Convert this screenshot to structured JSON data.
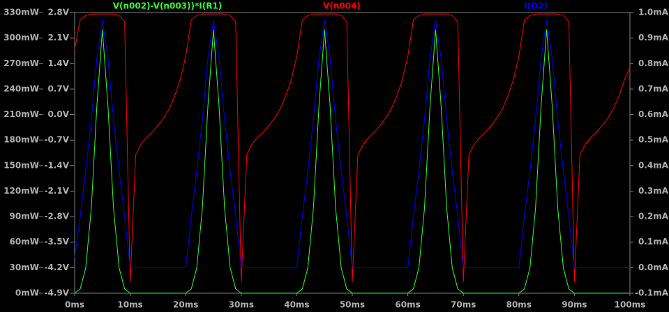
{
  "chart_data": {
    "type": "line",
    "x": [
      0,
      1,
      2,
      3,
      4,
      5,
      6,
      7,
      8,
      9,
      10,
      11,
      12,
      13,
      14,
      15,
      16,
      17,
      18,
      19,
      20,
      21,
      22,
      23,
      24,
      25,
      26,
      27,
      28,
      29,
      30,
      31,
      32,
      33,
      34,
      35,
      36,
      37,
      38,
      39,
      40,
      41,
      42,
      43,
      44,
      45,
      46,
      47,
      48,
      49,
      50,
      51,
      52,
      53,
      54,
      55,
      56,
      57,
      58,
      59,
      60,
      61,
      62,
      63,
      64,
      65,
      66,
      67,
      68,
      69,
      70,
      71,
      72,
      73,
      74,
      75,
      76,
      77,
      78,
      79,
      80,
      81,
      82,
      83,
      84,
      85,
      86,
      87,
      88,
      89,
      90,
      91,
      92,
      93,
      94,
      95,
      96,
      97,
      98,
      99,
      100
    ],
    "series": [
      {
        "name": "V(n002)-V(n003))*I(R1)",
        "color": "#30ff30",
        "axis": "y",
        "values": [
          0,
          5,
          30,
          100,
          220,
          310,
          220,
          100,
          30,
          5,
          0,
          0,
          0,
          0,
          0,
          0,
          0,
          0,
          0,
          0,
          0,
          5,
          30,
          100,
          220,
          310,
          220,
          100,
          30,
          5,
          0,
          0,
          0,
          0,
          0,
          0,
          0,
          0,
          0,
          0,
          0,
          5,
          30,
          100,
          220,
          310,
          220,
          100,
          30,
          5,
          0,
          0,
          0,
          0,
          0,
          0,
          0,
          0,
          0,
          0,
          0,
          5,
          30,
          100,
          220,
          310,
          220,
          100,
          30,
          5,
          0,
          0,
          0,
          0,
          0,
          0,
          0,
          0,
          0,
          0,
          0,
          5,
          30,
          100,
          220,
          310,
          220,
          100,
          30,
          5,
          0,
          0,
          0,
          0,
          0,
          0,
          0,
          0,
          0,
          0,
          0
        ]
      },
      {
        "name": "V(n004)",
        "color": "#ff0000",
        "axis": "y3",
        "values": [
          1.8,
          2.6,
          2.72,
          2.76,
          2.76,
          2.76,
          2.76,
          2.76,
          2.72,
          2.55,
          -4.6,
          -1.1,
          -0.8,
          -0.62,
          -0.48,
          -0.3,
          -0.1,
          0.15,
          0.5,
          0.95,
          1.6,
          2.6,
          2.72,
          2.76,
          2.76,
          2.76,
          2.76,
          2.76,
          2.72,
          2.55,
          -4.6,
          -1.1,
          -0.8,
          -0.62,
          -0.48,
          -0.3,
          -0.1,
          0.15,
          0.5,
          0.95,
          1.6,
          2.6,
          2.72,
          2.76,
          2.76,
          2.76,
          2.76,
          2.76,
          2.72,
          2.55,
          -4.6,
          -1.1,
          -0.8,
          -0.62,
          -0.48,
          -0.3,
          -0.1,
          0.15,
          0.5,
          0.95,
          1.6,
          2.6,
          2.72,
          2.76,
          2.76,
          2.76,
          2.76,
          2.76,
          2.72,
          2.55,
          -4.6,
          -1.1,
          -0.8,
          -0.62,
          -0.48,
          -0.3,
          -0.1,
          0.15,
          0.5,
          0.95,
          1.6,
          2.6,
          2.72,
          2.76,
          2.76,
          2.76,
          2.76,
          2.76,
          2.72,
          2.55,
          -4.6,
          -1.1,
          -0.8,
          -0.62,
          -0.48,
          -0.3,
          -0.1,
          0.15,
          0.5,
          0.95,
          1.3
        ]
      },
      {
        "name": "I(D2)",
        "color": "#0000ff",
        "axis": "y2",
        "values": [
          0.04,
          0.2,
          0.38,
          0.58,
          0.82,
          0.97,
          0.82,
          0.58,
          0.38,
          0.2,
          0,
          0,
          0,
          0,
          0,
          0,
          0,
          0,
          0,
          0,
          0,
          0.2,
          0.38,
          0.58,
          0.82,
          0.97,
          0.82,
          0.58,
          0.38,
          0.2,
          0,
          0,
          0,
          0,
          0,
          0,
          0,
          0,
          0,
          0,
          0,
          0.2,
          0.38,
          0.58,
          0.82,
          0.97,
          0.82,
          0.58,
          0.38,
          0.2,
          0,
          0,
          0,
          0,
          0,
          0,
          0,
          0,
          0,
          0,
          0,
          0.2,
          0.38,
          0.58,
          0.82,
          0.97,
          0.82,
          0.58,
          0.38,
          0.2,
          0,
          0,
          0,
          0,
          0,
          0,
          0,
          0,
          0,
          0,
          0,
          0.2,
          0.38,
          0.58,
          0.82,
          0.97,
          0.82,
          0.58,
          0.38,
          0.2,
          0,
          0,
          0,
          0,
          0,
          0,
          0,
          0,
          0,
          0,
          0
        ]
      }
    ],
    "xlim": [
      0,
      100
    ],
    "xticks": [
      {
        "value": 0,
        "label": "0ms"
      },
      {
        "value": 10,
        "label": "10ms"
      },
      {
        "value": 20,
        "label": "20ms"
      },
      {
        "value": 30,
        "label": "30ms"
      },
      {
        "value": 40,
        "label": "40ms"
      },
      {
        "value": 50,
        "label": "50ms"
      },
      {
        "value": 60,
        "label": "60ms"
      },
      {
        "value": 70,
        "label": "70ms"
      },
      {
        "value": 80,
        "label": "80ms"
      },
      {
        "value": 90,
        "label": "90ms"
      },
      {
        "value": 100,
        "label": "100ms"
      }
    ],
    "ylim": [
      0,
      330
    ],
    "yticks": [
      {
        "value": 0,
        "label": "0mW"
      },
      {
        "value": 30,
        "label": "30mW"
      },
      {
        "value": 60,
        "label": "60mW"
      },
      {
        "value": 90,
        "label": "90mW"
      },
      {
        "value": 120,
        "label": "120mW"
      },
      {
        "value": 150,
        "label": "150mW"
      },
      {
        "value": 180,
        "label": "180mW"
      },
      {
        "value": 210,
        "label": "210mW"
      },
      {
        "value": 240,
        "label": "240mW"
      },
      {
        "value": 270,
        "label": "270mW"
      },
      {
        "value": 300,
        "label": "300mW"
      },
      {
        "value": 330,
        "label": "330mW"
      }
    ],
    "y3lim": [
      -4.9,
      2.8
    ],
    "y3ticks": [
      {
        "value": -4.9,
        "label": "-4.9V"
      },
      {
        "value": -4.2,
        "label": "-4.2V"
      },
      {
        "value": -3.5,
        "label": "-3.5V"
      },
      {
        "value": -2.8,
        "label": "-2.8V"
      },
      {
        "value": -2.1,
        "label": "-2.1V"
      },
      {
        "value": -1.4,
        "label": "-1.4V"
      },
      {
        "value": -0.7,
        "label": "-0.7V"
      },
      {
        "value": 0,
        "label": "0.0V"
      },
      {
        "value": 0.7,
        "label": "0.7V"
      },
      {
        "value": 1.4,
        "label": "1.4V"
      },
      {
        "value": 2.1,
        "label": "2.1V"
      },
      {
        "value": 2.8,
        "label": "2.8V"
      }
    ],
    "y2lim": [
      -0.1,
      1.0
    ],
    "y2ticks": [
      {
        "value": -0.1,
        "label": "-0.1mA"
      },
      {
        "value": 0,
        "label": "0.0mA"
      },
      {
        "value": 0.1,
        "label": "0.1mA"
      },
      {
        "value": 0.2,
        "label": "0.2mA"
      },
      {
        "value": 0.3,
        "label": "0.3mA"
      },
      {
        "value": 0.4,
        "label": "0.4mA"
      },
      {
        "value": 0.5,
        "label": "0.5mA"
      },
      {
        "value": 0.6,
        "label": "0.6mA"
      },
      {
        "value": 0.7,
        "label": "0.7mA"
      },
      {
        "value": 0.8,
        "label": "0.8mA"
      },
      {
        "value": 0.9,
        "label": "0.9mA"
      },
      {
        "value": 1.0,
        "label": "1.0mA"
      }
    ],
    "grid": false
  }
}
